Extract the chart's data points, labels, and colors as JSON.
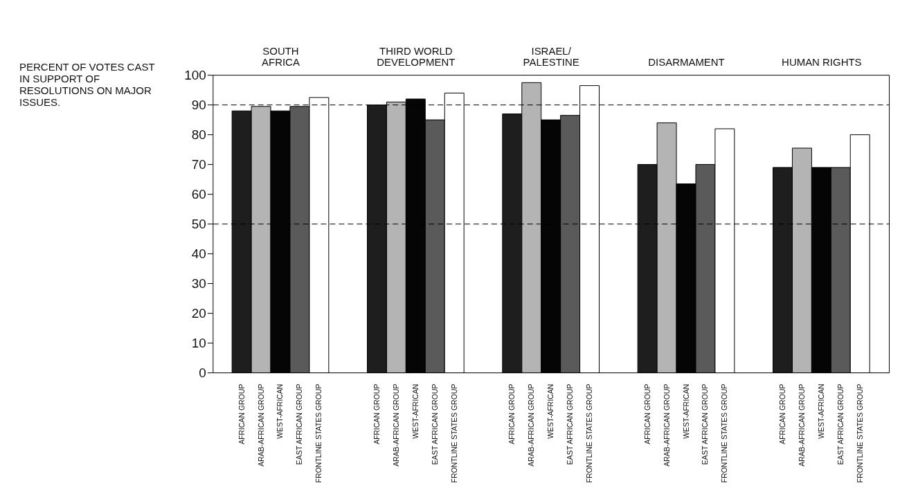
{
  "chart_data": {
    "type": "bar",
    "title": "PERCENT OF VOTES CAST IN SUPPORT OF RESOLUTIONS ON MAJOR ISSUES.",
    "categories": [
      "SOUTH\nAFRICA",
      "THIRD WORLD\nDEVELOPMENT",
      "ISRAEL/\nPALESTINE",
      "DISARMAMENT",
      "HUMAN RIGHTS"
    ],
    "series": [
      {
        "name": "AFRICAN GROUP",
        "color": "#1e1e1e",
        "values": [
          88,
          90,
          87,
          70,
          69
        ]
      },
      {
        "name": "ARAB-AFRICAN GROUP",
        "color": "#b4b4b4",
        "values": [
          89.5,
          91,
          97.5,
          84,
          75.5
        ]
      },
      {
        "name": "WEST-AFRICAN",
        "color": "#050505",
        "values": [
          88,
          92,
          85,
          63.5,
          69
        ]
      },
      {
        "name": "EAST AFRICAN GROUP",
        "color": "#5a5a5a",
        "values": [
          89.5,
          85,
          86.5,
          70,
          69
        ]
      },
      {
        "name": "FRONTLINE STATES GROUP",
        "color": "#ffffff",
        "values": [
          92.5,
          94,
          96.5,
          82,
          80
        ]
      }
    ],
    "ylim": [
      0,
      100
    ],
    "yticks": [
      0,
      10,
      20,
      30,
      40,
      50,
      60,
      70,
      80,
      90,
      100
    ],
    "grid": false,
    "legend": false,
    "ref_lines": [
      {
        "axis": "y",
        "value": 90,
        "line_style": "dashed"
      },
      {
        "axis": "y",
        "value": 50,
        "line_style": "dashed"
      }
    ]
  }
}
